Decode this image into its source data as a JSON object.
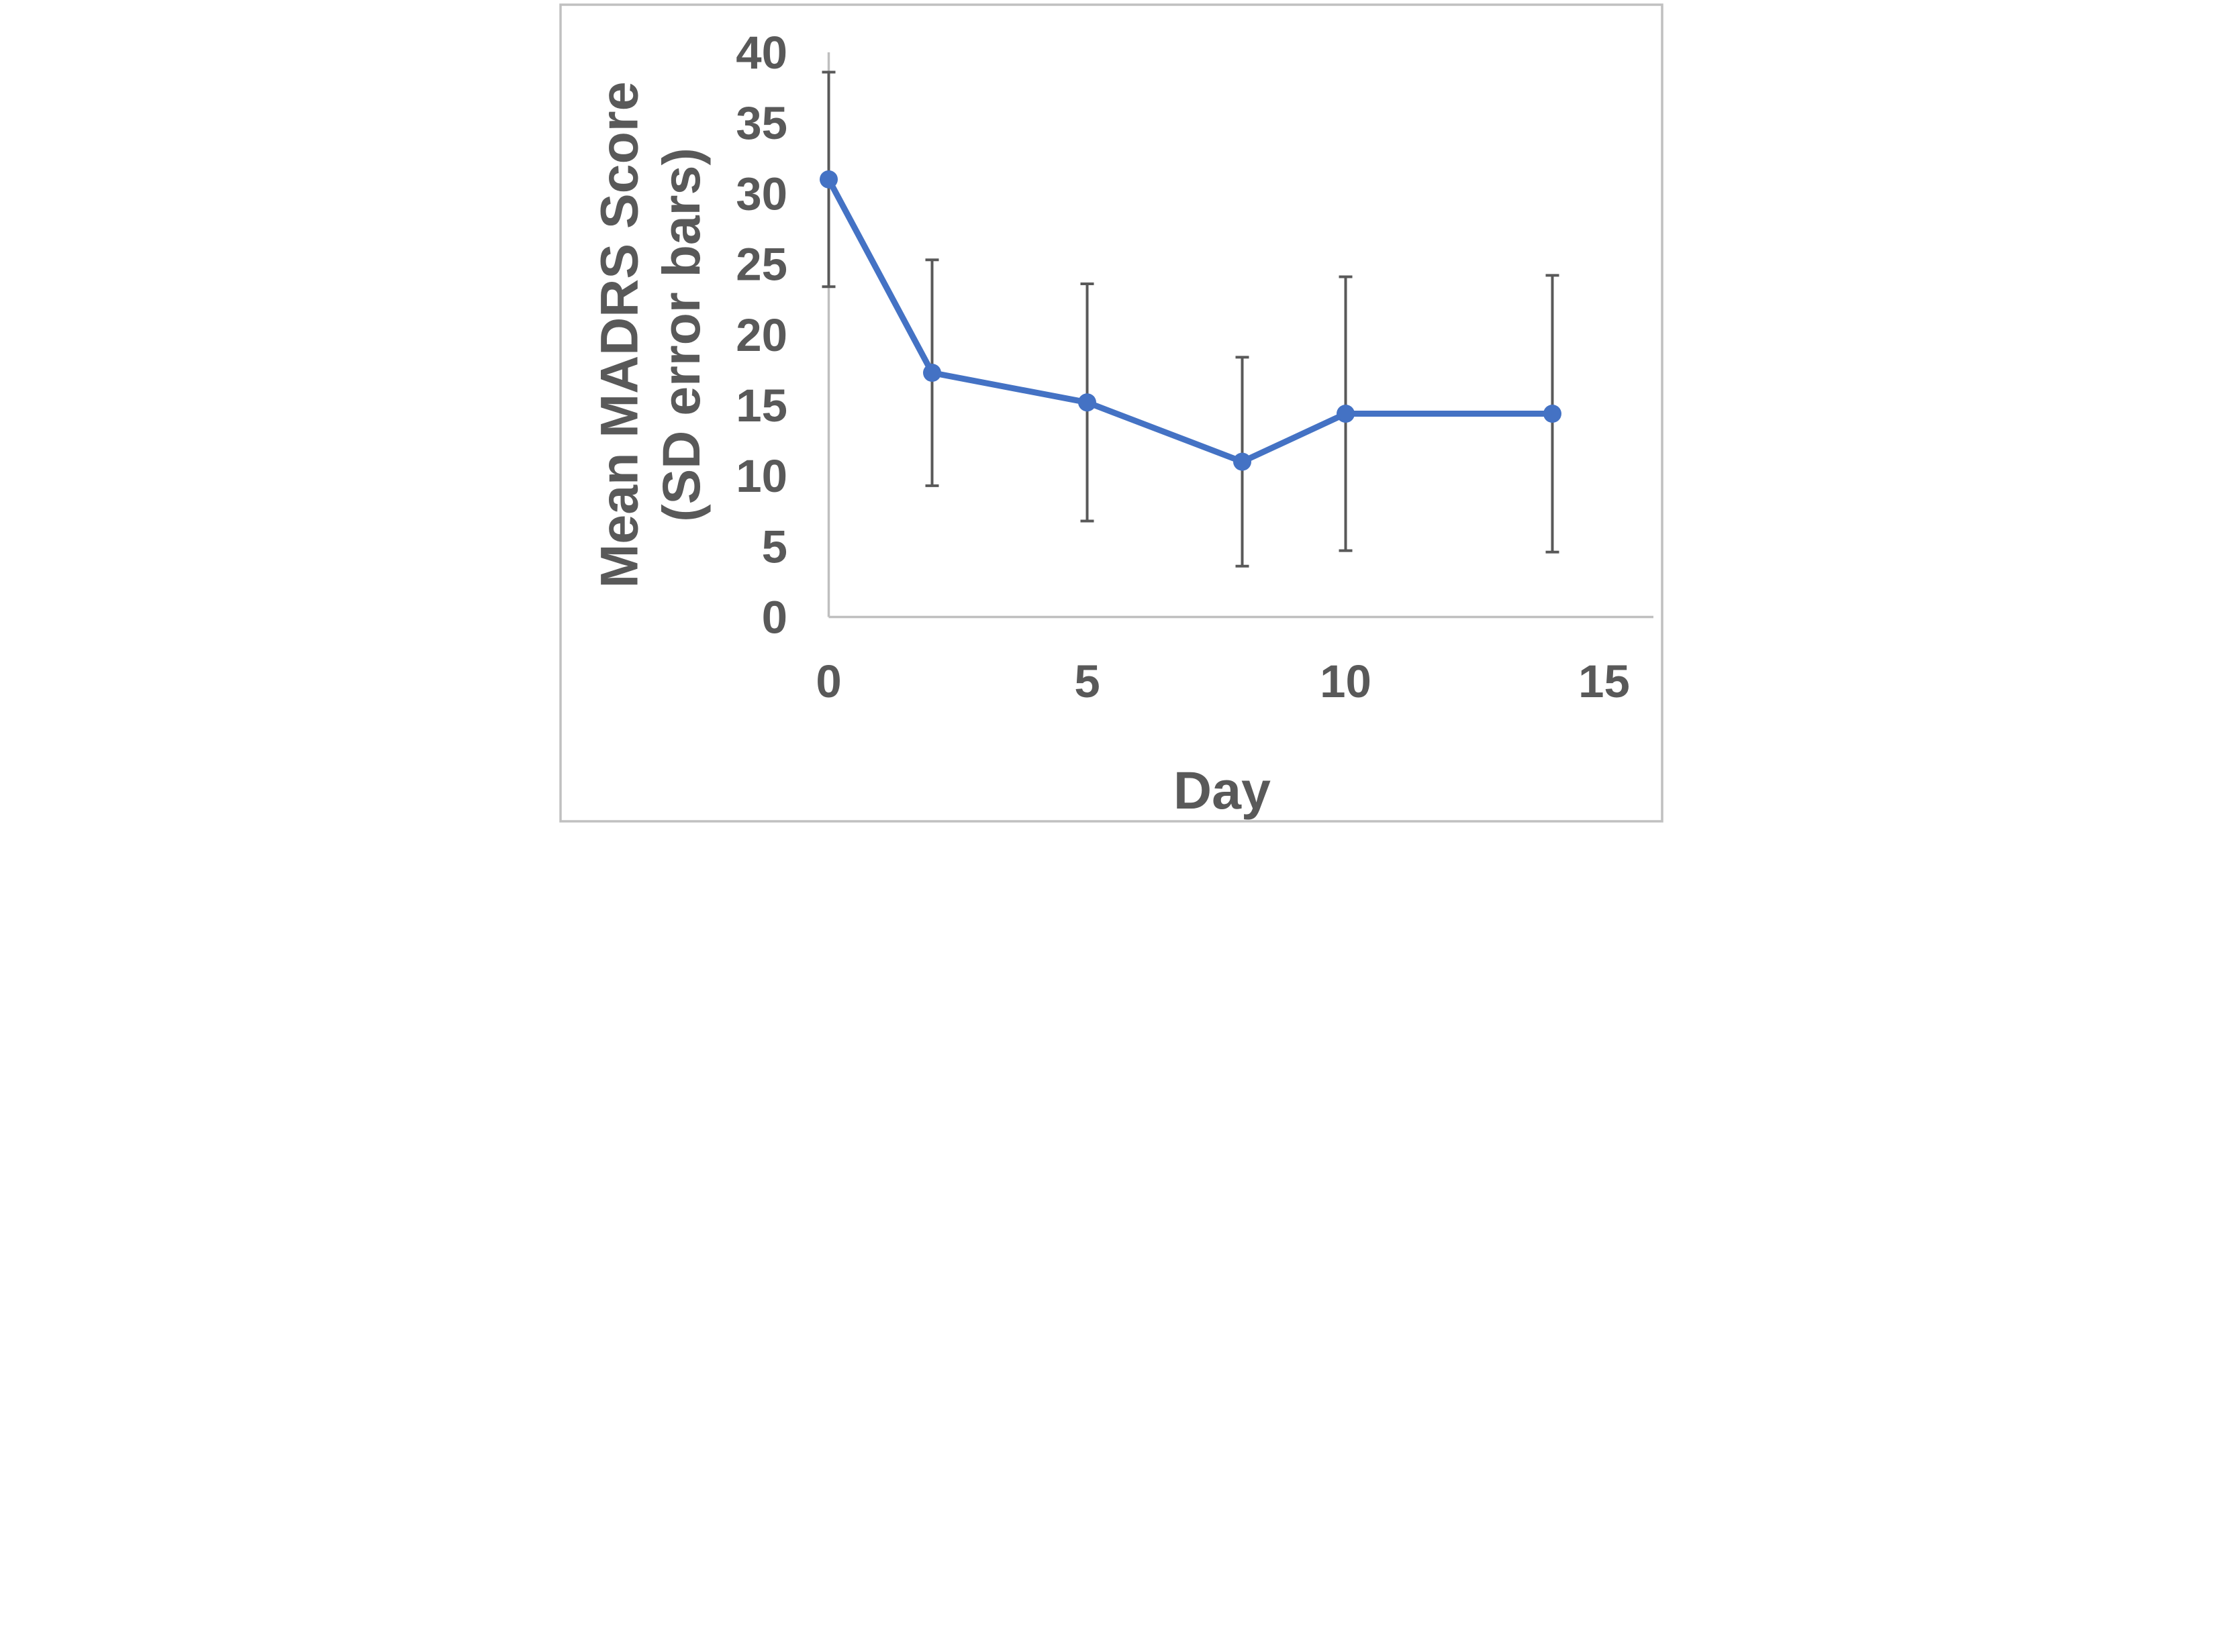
{
  "figure": {
    "background_color": "#ffffff",
    "border_color": "#c0c0c0",
    "axis_color": "#bfbfbf",
    "text_color": "#595959"
  },
  "chart_data": {
    "type": "line",
    "title": "",
    "xlabel": "Day",
    "ylabel_line1": "Mean MADRS Score",
    "ylabel_line2": "(SD error bars)",
    "x_ticks": [
      0,
      5,
      10,
      15
    ],
    "y_ticks": [
      0,
      5,
      10,
      15,
      20,
      25,
      30,
      35,
      40
    ],
    "xlim": [
      0,
      15.9
    ],
    "ylim": [
      0,
      40
    ],
    "grid": false,
    "legend_position": "none",
    "error_bar_style": "SD, capped, both directions",
    "series": [
      {
        "name": "Mean MADRS Score",
        "line_color": "#4472c4",
        "marker": "circle",
        "error_bar_color": "#595959",
        "x": [
          0,
          2,
          5,
          8,
          10,
          14
        ],
        "points": [
          {
            "day": 0,
            "mean": 31.0,
            "upper": 38.6,
            "lower": 23.4
          },
          {
            "day": 2,
            "mean": 17.3,
            "upper": 25.3,
            "lower": 9.3
          },
          {
            "day": 5,
            "mean": 15.2,
            "upper": 23.6,
            "lower": 6.8
          },
          {
            "day": 8,
            "mean": 11.0,
            "upper": 18.4,
            "lower": 3.6
          },
          {
            "day": 10,
            "mean": 14.4,
            "upper": 24.1,
            "lower": 4.7
          },
          {
            "day": 14,
            "mean": 14.4,
            "upper": 24.2,
            "lower": 4.6
          }
        ]
      }
    ]
  }
}
